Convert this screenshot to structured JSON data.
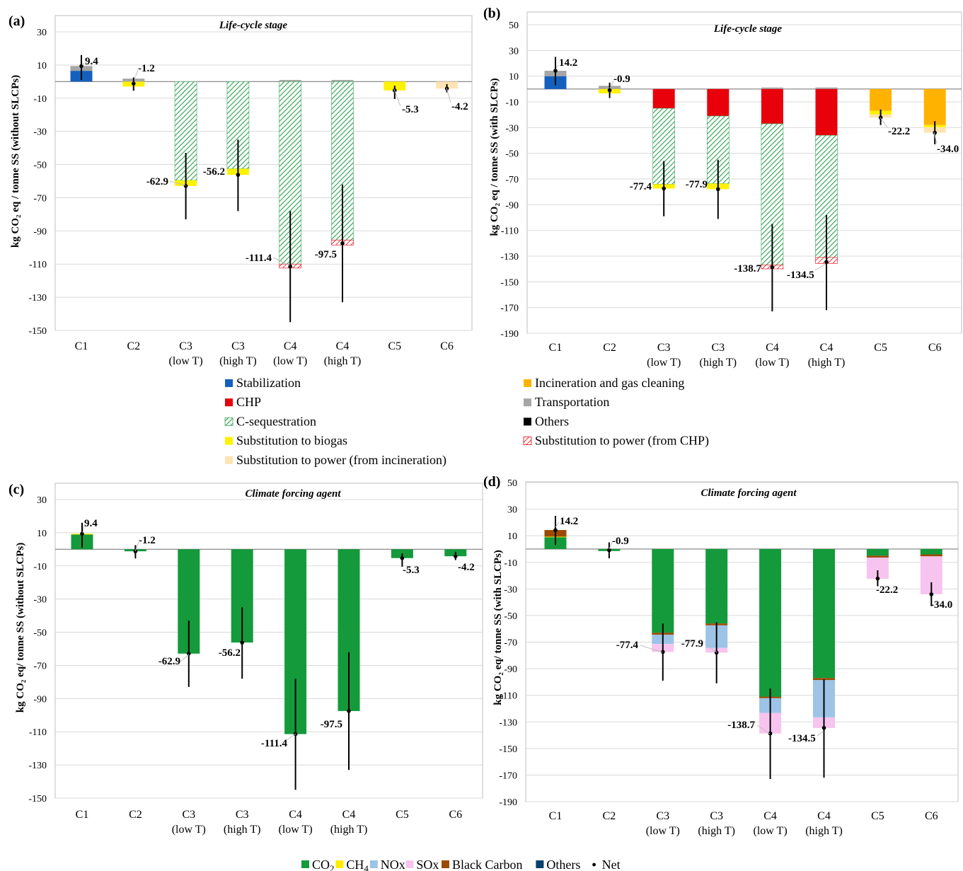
{
  "colors": {
    "stabilization": "#1560bd",
    "chp": "#e8000b",
    "cseq": "#3aa55a",
    "biogas": "#fff200",
    "power_incin": "#fde4b2",
    "incineration": "#ffb300",
    "transport": "#a6a6a6",
    "others_stage": "#000000",
    "power_chp": "#f4a7a7",
    "co2": "#149a3b",
    "ch4": "#ffee00",
    "nox": "#9dc3e6",
    "sox": "#f7c4ef",
    "bc": "#9c4a00",
    "others_agent": "#0b3f6e"
  },
  "legend_stage": {
    "left": [
      {
        "label": "Stabilization",
        "color_key": "stabilization"
      },
      {
        "label": "CHP",
        "color_key": "chp"
      },
      {
        "label": "C-sequestration",
        "color_key": "cseq",
        "hatch": true
      },
      {
        "label": "Substitution to biogas",
        "color_key": "biogas"
      },
      {
        "label": "Substitution to power (from incineration)",
        "color_key": "power_incin"
      }
    ],
    "right": [
      {
        "label": "Incineration and gas cleaning",
        "color_key": "incineration"
      },
      {
        "label": "Transportation",
        "color_key": "transport"
      },
      {
        "label": "Others",
        "color_key": "others_stage"
      },
      {
        "label": "Substitution to power (from CHP)",
        "color_key": "power_chp",
        "hatch": true
      }
    ]
  },
  "legend_agent": [
    {
      "label": "CO",
      "sub": "2",
      "color_key": "co2"
    },
    {
      "label": "CH",
      "sub": "4",
      "color_key": "ch4"
    },
    {
      "label": "NOx",
      "color_key": "nox"
    },
    {
      "label": "SOx",
      "color_key": "sox"
    },
    {
      "label": "Black Carbon",
      "color_key": "bc"
    },
    {
      "label": "Others",
      "color_key": "others_agent"
    },
    {
      "label": "Net",
      "marker": "dot"
    }
  ],
  "chart_data": [
    {
      "id": "a",
      "panel_label": "(a)",
      "type": "bar",
      "stacked": true,
      "title": "Life-cycle stage",
      "ylabel": "kg CO₂ eq / tonne SS (without SLCPs)",
      "ylim": [
        -150,
        40
      ],
      "yticks": [
        30,
        10,
        -10,
        -30,
        -50,
        -70,
        -90,
        -110,
        -130,
        -150
      ],
      "categories": [
        [
          "C1"
        ],
        [
          "C2"
        ],
        [
          "C3",
          "(low T)"
        ],
        [
          "C3",
          "(high T)"
        ],
        [
          "C4",
          "(low T)"
        ],
        [
          "C4",
          "(high T)"
        ],
        [
          "C5"
        ],
        [
          "C6"
        ]
      ],
      "series": [
        {
          "key": "stabilization",
          "values": [
            6.5,
            0,
            0,
            0,
            0,
            0,
            0,
            0
          ]
        },
        {
          "key": "transport",
          "values": [
            2.9,
            1.8,
            0,
            0,
            1.0,
            1.0,
            0,
            0
          ]
        },
        {
          "key": "chp",
          "values": [
            0,
            0,
            0,
            0,
            0,
            0,
            0,
            0
          ]
        },
        {
          "key": "incineration",
          "values": [
            0,
            0,
            0,
            0,
            0,
            0,
            0,
            0
          ]
        },
        {
          "key": "cseq",
          "hatch": true,
          "values": [
            0,
            0,
            -59.5,
            -52.5,
            -110,
            -95.5,
            0,
            0
          ]
        },
        {
          "key": "biogas",
          "values": [
            0,
            -3.0,
            -3.4,
            -3.7,
            0,
            0,
            -5.3,
            0
          ]
        },
        {
          "key": "power_chp",
          "hatch": true,
          "values": [
            0,
            0,
            0,
            0,
            -2.4,
            -3.0,
            0,
            0
          ]
        },
        {
          "key": "power_incin",
          "values": [
            0,
            0,
            0,
            0,
            0,
            0,
            0,
            -4.2
          ]
        }
      ],
      "net": [
        9.4,
        -1.2,
        -62.9,
        -56.2,
        -111.4,
        -97.5,
        -5.3,
        -4.2
      ],
      "net_labels": [
        "9.4",
        "-1.2",
        "-62.9",
        "-56.2",
        "-111.4",
        "-97.5",
        "-5.3",
        "-4.2"
      ],
      "err_low": [
        1,
        -5.5,
        -83,
        -78,
        -145,
        -133,
        -10.5,
        -6.5
      ],
      "err_high": [
        16,
        2.5,
        -43,
        -35,
        -78,
        -62,
        -2.5,
        -1.5
      ]
    },
    {
      "id": "b",
      "panel_label": "(b)",
      "type": "bar",
      "stacked": true,
      "title": "Life-cycle stage",
      "ylabel": "kg CO₂ eq / tonne SS (with SLCPs)",
      "ylim": [
        -190,
        60
      ],
      "yticks": [
        50,
        30,
        10,
        -10,
        -30,
        -50,
        -70,
        -90,
        -110,
        -130,
        -150,
        -170,
        -190
      ],
      "categories": [
        [
          "C1"
        ],
        [
          "C2"
        ],
        [
          "C3",
          "(low T)"
        ],
        [
          "C3",
          "(high T)"
        ],
        [
          "C4",
          "(low T)"
        ],
        [
          "C4",
          "(high T)"
        ],
        [
          "C5"
        ],
        [
          "C6"
        ]
      ],
      "series": [
        {
          "key": "stabilization",
          "values": [
            10,
            0,
            0,
            0,
            0,
            0,
            0,
            0
          ]
        },
        {
          "key": "transport",
          "values": [
            4.2,
            2.5,
            0,
            0,
            1.2,
            1.2,
            0,
            0
          ]
        },
        {
          "key": "chp",
          "values": [
            0,
            0,
            -15,
            -21,
            -27,
            -36,
            0,
            0
          ]
        },
        {
          "key": "incineration",
          "values": [
            0,
            0,
            0,
            0,
            0,
            0,
            -17,
            -28
          ]
        },
        {
          "key": "cseq",
          "hatch": true,
          "values": [
            0,
            0,
            -59,
            -52.5,
            -110,
            -95,
            0,
            0
          ]
        },
        {
          "key": "biogas",
          "values": [
            0,
            -3.4,
            -3.4,
            -4.4,
            0,
            0,
            -2.8,
            -1.7
          ]
        },
        {
          "key": "power_chp",
          "hatch": true,
          "values": [
            0,
            0,
            0,
            0,
            -2.9,
            -4.7,
            0,
            0
          ]
        },
        {
          "key": "power_incin",
          "values": [
            0,
            0,
            0,
            0,
            0,
            0,
            -2.4,
            -4.3
          ]
        }
      ],
      "net": [
        14.2,
        -0.9,
        -77.4,
        -77.9,
        -138.7,
        -134.5,
        -22.2,
        -34.0
      ],
      "net_labels": [
        "14.2",
        "-0.9",
        "-77.4",
        "-77.9",
        "-138.7",
        "-134.5",
        "-22.2",
        "-34.0"
      ],
      "err_low": [
        3,
        -7,
        -99,
        -101,
        -173,
        -172,
        -28,
        -43
      ],
      "err_high": [
        25,
        5,
        -56,
        -55,
        -105,
        -98,
        -16,
        -25
      ]
    },
    {
      "id": "c",
      "panel_label": "(c)",
      "type": "bar",
      "stacked": true,
      "title": "Climate forcing agent",
      "ylabel": "kg CO₂ eq/ tonne SS (without SLCPs)",
      "ylim": [
        -150,
        40
      ],
      "yticks": [
        30,
        10,
        -10,
        -30,
        -50,
        -70,
        -90,
        -110,
        -130,
        -150
      ],
      "categories": [
        [
          "C1"
        ],
        [
          "C2"
        ],
        [
          "C3",
          "(low T)"
        ],
        [
          "C3",
          "(high T)"
        ],
        [
          "C4",
          "(low T)"
        ],
        [
          "C4",
          "(high T)"
        ],
        [
          "C5"
        ],
        [
          "C6"
        ]
      ],
      "series": [
        {
          "key": "co2",
          "values": [
            8.9,
            -1.2,
            -62.9,
            -56.2,
            -111.4,
            -97.5,
            -5.3,
            -4.2
          ]
        },
        {
          "key": "ch4",
          "values": [
            0.5,
            0,
            0,
            0,
            0,
            0,
            0,
            0
          ]
        }
      ],
      "net": [
        9.4,
        -1.2,
        -62.9,
        -56.2,
        -111.4,
        -97.5,
        -5.3,
        -4.2
      ],
      "net_labels": [
        "9.4",
        "-1.2",
        "-62.9",
        "-56.2",
        "-111.4",
        "-97.5",
        "-5.3",
        "-4.2"
      ],
      "err_low": [
        1,
        -5.5,
        -83,
        -78,
        -145,
        -133,
        -10.5,
        -6.5
      ],
      "err_high": [
        16,
        2.5,
        -43,
        -35,
        -78,
        -62,
        -2.5,
        -1.5
      ]
    },
    {
      "id": "d",
      "panel_label": "(d)",
      "type": "bar",
      "stacked": true,
      "title": "Climate forcing agent",
      "ylabel": "kg CO₂ eq/ tonne SS (with SLCPs)",
      "ylim": [
        -190,
        60
      ],
      "yticks": [
        50,
        30,
        10,
        -10,
        -30,
        -50,
        -70,
        -90,
        -110,
        -130,
        -150,
        -170,
        -190
      ],
      "categories": [
        [
          "C1"
        ],
        [
          "C2"
        ],
        [
          "C3",
          "(low T)"
        ],
        [
          "C3",
          "(high T)"
        ],
        [
          "C4",
          "(low T)"
        ],
        [
          "C4",
          "(high T)"
        ],
        [
          "C5"
        ],
        [
          "C6"
        ]
      ],
      "series": [
        {
          "key": "co2",
          "values": [
            8.9,
            -1.5,
            -63,
            -56,
            -111,
            -97,
            -5,
            -4
          ]
        },
        {
          "key": "ch4",
          "values": [
            0.4,
            0,
            0,
            0,
            0,
            0,
            0,
            0
          ]
        },
        {
          "key": "bc",
          "values": [
            5.0,
            0,
            -1.4,
            -1.4,
            -1.2,
            -1.6,
            -1.4,
            -1.5
          ]
        },
        {
          "key": "nox",
          "values": [
            0,
            0,
            -7,
            -17,
            -11,
            -28,
            0,
            0
          ]
        },
        {
          "key": "sox",
          "values": [
            0,
            0,
            -6,
            -3.5,
            -15.5,
            -8,
            -16,
            -28.5
          ]
        }
      ],
      "net": [
        14.2,
        -0.9,
        -77.4,
        -77.9,
        -138.7,
        -134.5,
        -22.2,
        -34.0
      ],
      "net_labels": [
        "14.2",
        "-0.9",
        "-77.4",
        "-77.9",
        "-138.7",
        "-134.5",
        "-22.2",
        "-34.0"
      ],
      "err_low": [
        3,
        -7,
        -99,
        -101,
        -173,
        -172,
        -28,
        -43
      ],
      "err_high": [
        25,
        5,
        -56,
        -55,
        -105,
        -98,
        -16,
        -25
      ]
    }
  ]
}
